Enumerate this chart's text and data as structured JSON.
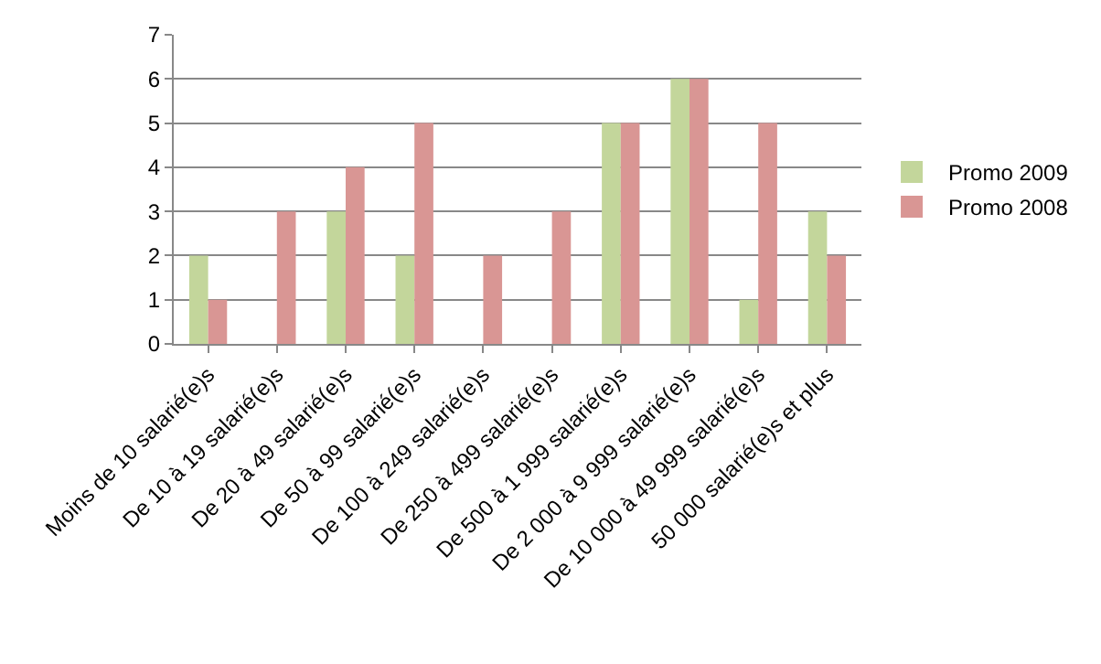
{
  "chart_data": {
    "type": "bar",
    "categories": [
      "Moins de 10 salarié(e)s",
      "De 10 à 19 salarié(e)s",
      "De 20 à 49 salarié(e)s",
      "De 50 à 99 salarié(e)s",
      "De 100 à 249 salarié(e)s",
      "De 250 à 499 salarié(e)s",
      "De 500 à 1 999 salarié(e)s",
      "De 2 000 à 9 999 salarié(e)s",
      "De 10 000 à 49 999 salarié(e)s",
      "50 000 salarié(e)s et plus"
    ],
    "series": [
      {
        "name": "Promo 2009",
        "color": "#c3d69b",
        "values": [
          2,
          0,
          3,
          2,
          0,
          0,
          5,
          6,
          1,
          3
        ]
      },
      {
        "name": "Promo 2008",
        "color": "#d99694",
        "values": [
          1,
          3,
          4,
          5,
          2,
          3,
          5,
          6,
          5,
          2
        ]
      }
    ],
    "ylim": [
      0,
      7
    ],
    "yticks": [
      0,
      1,
      2,
      3,
      4,
      5,
      6,
      7
    ],
    "grid": "y",
    "legend": "right"
  }
}
